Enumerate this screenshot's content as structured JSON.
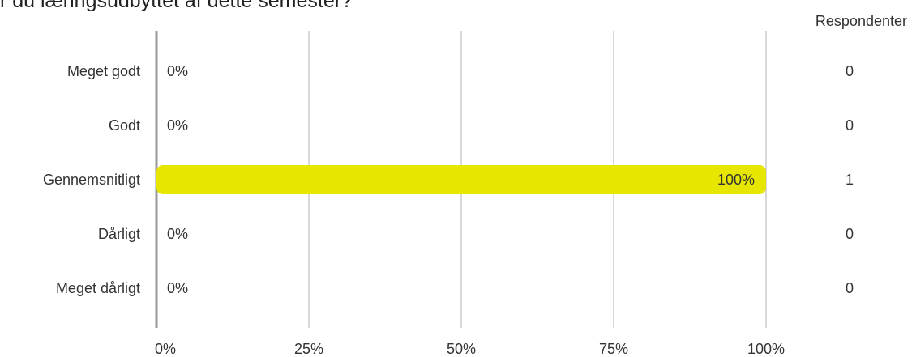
{
  "question": {
    "title": "r du læringsudbyttet af dette semester?"
  },
  "respondents_header": "Respondenter",
  "colors": {
    "bar": "#e6e600",
    "grid": "#b0b0b0",
    "axis": "#999999",
    "text": "#333333"
  },
  "chart_data": {
    "type": "bar",
    "orientation": "horizontal",
    "title": "",
    "xlabel": "",
    "ylabel": "",
    "categories": [
      "Meget godt",
      "Godt",
      "Gennemsnitligt",
      "Dårligt",
      "Meget dårligt"
    ],
    "values": [
      0,
      0,
      100,
      0,
      0
    ],
    "value_labels": [
      "0%",
      "0%",
      "100%",
      "0%",
      "0%"
    ],
    "respondents": [
      0,
      0,
      1,
      0,
      0
    ],
    "xlim": [
      0,
      100
    ],
    "x_ticks": [
      "0%",
      "25%",
      "50%",
      "75%",
      "100%"
    ],
    "grid": true
  }
}
